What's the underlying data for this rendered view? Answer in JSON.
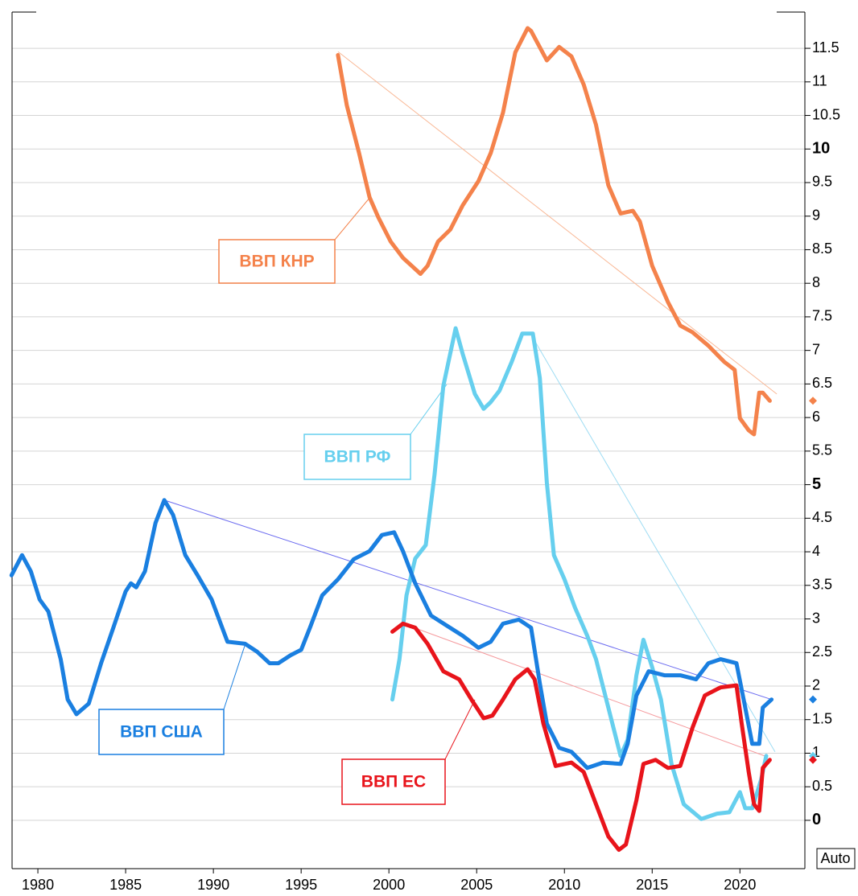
{
  "chart_data": {
    "type": "line",
    "xlim": [
      1978.53,
      2023.7
    ],
    "ylim": [
      -0.72,
      12.04
    ],
    "xticks": [
      1980,
      1985,
      1990,
      1995,
      2000,
      2005,
      2010,
      2015,
      2020
    ],
    "yticks": [
      0,
      0.5,
      1,
      1.5,
      2,
      2.5,
      3,
      3.5,
      4,
      4.5,
      5,
      5.5,
      6,
      6.5,
      7,
      7.5,
      8,
      8.5,
      9,
      9.5,
      10,
      10.5,
      11,
      11.5
    ],
    "grid": true,
    "y_scale_button": "Auto",
    "series": [
      {
        "name": "ВВП КНР",
        "color": "#f4824b",
        "trend_color": "#f9b896",
        "x": [
          1997.1,
          1997.6,
          1998.3,
          1998.9,
          1999.4,
          2000.1,
          2000.8,
          2001.8,
          2002.2,
          2002.8,
          2003.5,
          2004.2,
          2005.1,
          2005.8,
          2006.5,
          2007.2,
          2007.9,
          2008.1,
          2009.0,
          2009.7,
          2010.4,
          2011.1,
          2011.8,
          2012.5,
          2013.2,
          2013.9,
          2014.3,
          2015.0,
          2015.9,
          2016.6,
          2017.3,
          2018.2,
          2019.1,
          2019.7,
          2020.0,
          2020.5,
          2020.8,
          2021.1,
          2021.3,
          2021.7
        ],
        "values": [
          11.4,
          10.65,
          9.94,
          9.28,
          8.98,
          8.62,
          8.38,
          8.14,
          8.26,
          8.62,
          8.8,
          9.16,
          9.52,
          9.94,
          10.54,
          11.44,
          11.8,
          11.76,
          11.32,
          11.52,
          11.38,
          10.96,
          10.36,
          9.46,
          9.04,
          9.08,
          8.92,
          8.26,
          7.72,
          7.37,
          7.27,
          7.07,
          6.83,
          6.71,
          5.99,
          5.81,
          5.75,
          6.37,
          6.37,
          6.25
        ],
        "trend": {
          "x": [
            1997.1,
            2022.1
          ],
          "values": [
            11.45,
            6.35
          ]
        }
      },
      {
        "name": "ВВП РФ",
        "color": "#66cfee",
        "trend_color": "#9ddcf3",
        "x": [
          2000.2,
          2000.6,
          2001.0,
          2001.5,
          2002.1,
          2002.6,
          2003.1,
          2003.8,
          2004.2,
          2004.9,
          2005.4,
          2005.8,
          2006.3,
          2007.0,
          2007.6,
          2008.2,
          2008.6,
          2009.0,
          2009.4,
          2010.0,
          2010.6,
          2011.3,
          2011.8,
          2012.5,
          2013.2,
          2013.6,
          2014.1,
          2014.5,
          2015.0,
          2015.5,
          2016.1,
          2016.8,
          2017.8,
          2018.7,
          2019.4,
          2020.0,
          2020.3,
          2020.7,
          2021.2,
          2021.5
        ],
        "values": [
          1.8,
          2.4,
          3.35,
          3.9,
          4.1,
          5.15,
          6.47,
          7.33,
          6.95,
          6.35,
          6.13,
          6.23,
          6.4,
          6.83,
          7.25,
          7.25,
          6.59,
          5.03,
          3.95,
          3.59,
          3.17,
          2.75,
          2.4,
          1.68,
          0.96,
          1.2,
          2.16,
          2.69,
          2.28,
          1.8,
          0.84,
          0.24,
          0.02,
          0.1,
          0.12,
          0.42,
          0.18,
          0.18,
          0.6,
          0.96
        ],
        "trend": {
          "x": [
            2008.2,
            2022.0
          ],
          "values": [
            7.19,
            1.02
          ]
        }
      },
      {
        "name": "ВВП США",
        "color": "#1a7fe0",
        "trend_color": "#6b6bf0",
        "x": [
          1978.5,
          1979.1,
          1979.6,
          1980.1,
          1980.6,
          1981.3,
          1981.7,
          1982.2,
          1982.9,
          1983.6,
          1984.3,
          1985.0,
          1985.3,
          1985.6,
          1986.1,
          1986.7,
          1987.2,
          1987.7,
          1988.4,
          1989.1,
          1989.9,
          1990.8,
          1991.8,
          1992.5,
          1993.2,
          1993.7,
          1994.4,
          1995.0,
          1995.5,
          1996.2,
          1997.1,
          1998.0,
          1998.9,
          1999.6,
          2000.3,
          2000.8,
          2001.5,
          2002.4,
          2003.3,
          2004.2,
          2005.1,
          2005.8,
          2006.5,
          2007.4,
          2008.1,
          2008.6,
          2009.0,
          2009.7,
          2010.4,
          2011.3,
          2012.2,
          2013.2,
          2013.6,
          2014.1,
          2014.8,
          2015.7,
          2016.6,
          2017.5,
          2018.2,
          2018.9,
          2019.8,
          2020.3,
          2020.7,
          2021.1,
          2021.3,
          2021.8
        ],
        "values": [
          3.65,
          3.95,
          3.71,
          3.29,
          3.11,
          2.4,
          1.8,
          1.58,
          1.74,
          2.34,
          2.87,
          3.41,
          3.53,
          3.47,
          3.71,
          4.43,
          4.77,
          4.55,
          3.95,
          3.65,
          3.29,
          2.66,
          2.63,
          2.51,
          2.34,
          2.34,
          2.46,
          2.54,
          2.87,
          3.35,
          3.59,
          3.89,
          4.01,
          4.25,
          4.29,
          4.01,
          3.53,
          3.05,
          2.9,
          2.75,
          2.57,
          2.66,
          2.93,
          2.99,
          2.87,
          2.04,
          1.44,
          1.08,
          1.02,
          0.78,
          0.86,
          0.84,
          1.14,
          1.86,
          2.22,
          2.16,
          2.16,
          2.1,
          2.34,
          2.4,
          2.34,
          1.68,
          1.14,
          1.14,
          1.68,
          1.8
        ],
        "trend": {
          "x": [
            1987.2,
            2021.8
          ],
          "values": [
            4.77,
            1.8
          ]
        }
      },
      {
        "name": "ВВП ЕС",
        "color": "#e8141b",
        "trend_color": "#f59a9d",
        "x": [
          2000.2,
          2000.8,
          2001.5,
          2002.2,
          2003.1,
          2004.0,
          2004.7,
          2005.4,
          2005.9,
          2006.5,
          2007.2,
          2007.9,
          2008.3,
          2008.8,
          2009.5,
          2010.4,
          2011.1,
          2011.8,
          2012.5,
          2013.1,
          2013.5,
          2014.1,
          2014.5,
          2015.2,
          2015.9,
          2016.6,
          2017.3,
          2018.0,
          2018.9,
          2019.8,
          2020.1,
          2020.5,
          2020.8,
          2021.1,
          2021.3,
          2021.7
        ],
        "values": [
          2.81,
          2.93,
          2.87,
          2.63,
          2.22,
          2.1,
          1.8,
          1.52,
          1.56,
          1.8,
          2.1,
          2.25,
          2.1,
          1.44,
          0.81,
          0.86,
          0.72,
          0.24,
          -0.24,
          -0.44,
          -0.36,
          0.3,
          0.84,
          0.9,
          0.78,
          0.81,
          1.38,
          1.86,
          1.98,
          2.01,
          1.44,
          0.72,
          0.24,
          0.14,
          0.78,
          0.9
        ],
        "trend": {
          "x": [
            2000.8,
            2021.4
          ],
          "values": [
            2.93,
            0.96
          ]
        }
      }
    ]
  }
}
